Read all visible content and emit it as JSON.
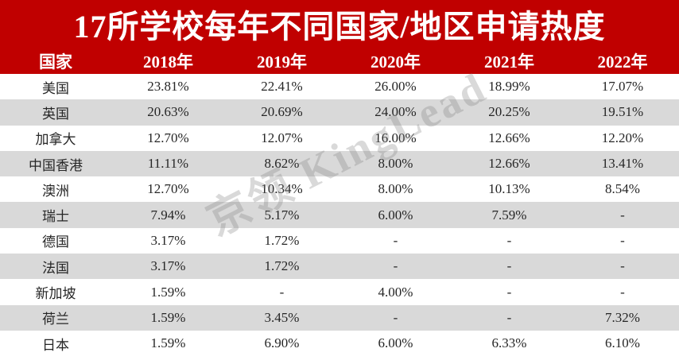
{
  "title": "17所学校每年不同国家/地区申请热度",
  "watermark_text": "京领 KingLead",
  "colors": {
    "banner_red": "#C00000",
    "alt_row_gray": "#D9D9D9",
    "header_text": "#FFFFFF",
    "body_text": "#262626",
    "watermark_gray": "#D5D5D5"
  },
  "chart_data": {
    "type": "table",
    "title": "17所学校每年不同国家/地区申请热度",
    "columns": [
      "国家",
      "2018年",
      "2019年",
      "2020年",
      "2021年",
      "2022年"
    ],
    "rows": [
      {
        "country": "美国",
        "values": [
          "23.81%",
          "22.41%",
          "26.00%",
          "18.99%",
          "17.07%"
        ]
      },
      {
        "country": "英国",
        "values": [
          "20.63%",
          "20.69%",
          "24.00%",
          "20.25%",
          "19.51%"
        ]
      },
      {
        "country": "加拿大",
        "values": [
          "12.70%",
          "12.07%",
          "16.00%",
          "12.66%",
          "12.20%"
        ]
      },
      {
        "country": "中国香港",
        "values": [
          "11.11%",
          "8.62%",
          "8.00%",
          "12.66%",
          "13.41%"
        ]
      },
      {
        "country": "澳洲",
        "values": [
          "12.70%",
          "10.34%",
          "8.00%",
          "10.13%",
          "8.54%"
        ]
      },
      {
        "country": "瑞士",
        "values": [
          "7.94%",
          "5.17%",
          "6.00%",
          "7.59%",
          "-"
        ]
      },
      {
        "country": "德国",
        "values": [
          "3.17%",
          "1.72%",
          "-",
          "-",
          "-"
        ]
      },
      {
        "country": "法国",
        "values": [
          "3.17%",
          "1.72%",
          "-",
          "-",
          "-"
        ]
      },
      {
        "country": "新加坡",
        "values": [
          "1.59%",
          "-",
          "4.00%",
          "-",
          "-"
        ]
      },
      {
        "country": "荷兰",
        "values": [
          "1.59%",
          "3.45%",
          "-",
          "-",
          "7.32%"
        ]
      },
      {
        "country": "日本",
        "values": [
          "1.59%",
          "6.90%",
          "6.00%",
          "6.33%",
          "6.10%"
        ]
      }
    ]
  }
}
